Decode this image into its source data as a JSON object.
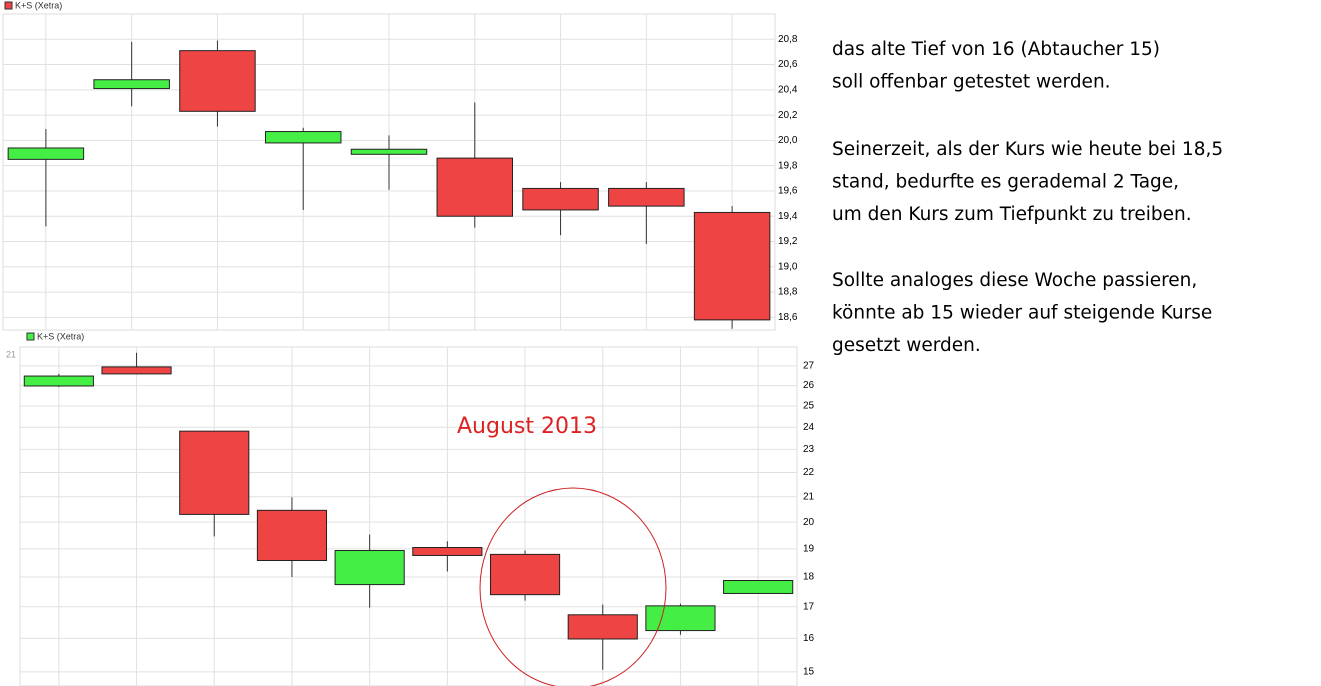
{
  "chart_data": [
    {
      "type": "candlestick",
      "legend": "K+S (Xetra)",
      "legend_color": "#ee4444",
      "up_color": "#44ee44",
      "down_color": "#ee4444",
      "grid": true,
      "log_scale": false,
      "ylim": [
        18.5,
        21.0
      ],
      "yticks": [
        {
          "value": 18.6,
          "label": "18,6"
        },
        {
          "value": 18.8,
          "label": "18,8"
        },
        {
          "value": 19.0,
          "label": "19,0"
        },
        {
          "value": 19.2,
          "label": "19,2"
        },
        {
          "value": 19.4,
          "label": "19,4"
        },
        {
          "value": 19.6,
          "label": "19,6"
        },
        {
          "value": 19.8,
          "label": "19,8"
        },
        {
          "value": 20.0,
          "label": "20,0"
        },
        {
          "value": 20.2,
          "label": "20,2"
        },
        {
          "value": 20.4,
          "label": "20,4"
        },
        {
          "value": 20.6,
          "label": "20,6"
        },
        {
          "value": 20.8,
          "label": "20,8"
        }
      ],
      "open": [
        19.85,
        20.41,
        20.71,
        19.98,
        19.89,
        19.86,
        19.62,
        19.62,
        19.43
      ],
      "high": [
        20.09,
        20.78,
        20.79,
        20.1,
        20.04,
        20.3,
        19.67,
        19.67,
        19.48
      ],
      "low": [
        19.32,
        20.27,
        20.11,
        19.45,
        19.61,
        19.31,
        19.25,
        19.18,
        18.51
      ],
      "close": [
        19.94,
        20.48,
        20.23,
        20.07,
        19.93,
        19.4,
        19.45,
        19.48,
        18.58
      ]
    },
    {
      "type": "candlestick",
      "legend": "K+S (Xetra)",
      "legend_color": "#44ee44",
      "up_color": "#44ee44",
      "down_color": "#ee4444",
      "grid": true,
      "log_scale": true,
      "corner_label": "21",
      "annotation": "August 2013",
      "ylim": [
        14.6,
        28
      ],
      "yticks": [
        15,
        16,
        17,
        18,
        19,
        20,
        21,
        22,
        23,
        24,
        25,
        26,
        27
      ],
      "open": [
        25.98,
        26.95,
        23.82,
        20.46,
        17.74,
        19.05,
        18.8,
        16.74,
        16.24,
        17.44
      ],
      "high": [
        26.59,
        27.69,
        23.82,
        20.98,
        19.53,
        19.28,
        18.94,
        17.07,
        17.1,
        17.88
      ],
      "low": [
        25.93,
        26.59,
        19.46,
        18.0,
        16.97,
        18.19,
        17.2,
        15.06,
        16.11,
        17.44
      ],
      "close": [
        26.48,
        26.59,
        20.3,
        18.58,
        18.94,
        18.76,
        17.4,
        15.98,
        17.03,
        17.88
      ]
    }
  ],
  "text": {
    "paragraphs": [
      [
        "das alte Tief von 16 (Abtaucher 15)",
        "soll offenbar getestet werden."
      ],
      [
        "Seinerzeit, als der Kurs wie heute bei 18,5",
        "stand, bedurfte es gerademal 2 Tage,",
        "um den Kurs zum Tiefpunkt zu treiben."
      ],
      [
        "Sollte analoges diese Woche passieren,",
        "könnte ab 15 wieder auf steigende Kurse",
        "gesetzt werden."
      ]
    ]
  }
}
